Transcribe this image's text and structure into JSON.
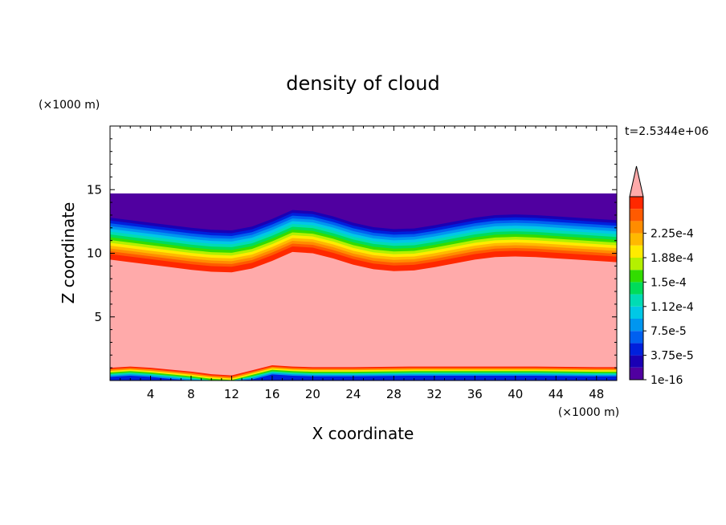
{
  "chart_data": {
    "type": "heatmap",
    "title": "density of cloud",
    "xlabel": "X coordinate",
    "ylabel": "Z coordinate",
    "x_unit": "(×1000 m)",
    "y_unit": "(×1000 m)",
    "time_label": "t=2.5344e+06",
    "xlim": [
      0,
      50
    ],
    "ylim": [
      0,
      20
    ],
    "x_ticks": [
      4,
      8,
      12,
      16,
      20,
      24,
      28,
      32,
      36,
      40,
      44,
      48
    ],
    "y_ticks": [
      5,
      10,
      15
    ],
    "domain_top_z": 14.7,
    "colorbar": {
      "levels": [
        "1e-16",
        "3.75e-5",
        "7.5e-5",
        "1.12e-4",
        "1.5e-4",
        "1.88e-4",
        "2.25e-4"
      ],
      "colors": [
        "#5000a0",
        "#1a00b4",
        "#0020dc",
        "#0060f0",
        "#0096f0",
        "#00c8e6",
        "#00dcb4",
        "#00dc5a",
        "#32dc00",
        "#b4f000",
        "#ffeb00",
        "#ffb900",
        "#ff8c00",
        "#ff5a00",
        "#ff2800"
      ],
      "overflow_color": "#ffaaaa"
    },
    "upper_cloud_base_km": [
      [
        0,
        9.5
      ],
      [
        2,
        9.3
      ],
      [
        4,
        9.1
      ],
      [
        6,
        8.9
      ],
      [
        8,
        8.7
      ],
      [
        10,
        8.55
      ],
      [
        12,
        8.5
      ],
      [
        14,
        8.8
      ],
      [
        16,
        9.4
      ],
      [
        18,
        10.1
      ],
      [
        20,
        10.0
      ],
      [
        22,
        9.6
      ],
      [
        24,
        9.1
      ],
      [
        26,
        8.75
      ],
      [
        28,
        8.6
      ],
      [
        30,
        8.65
      ],
      [
        32,
        8.9
      ],
      [
        34,
        9.2
      ],
      [
        36,
        9.5
      ],
      [
        38,
        9.7
      ],
      [
        40,
        9.75
      ],
      [
        42,
        9.7
      ],
      [
        44,
        9.6
      ],
      [
        46,
        9.5
      ],
      [
        48,
        9.4
      ],
      [
        50,
        9.3
      ]
    ],
    "lower_cloud_top_km": [
      [
        0,
        1.0
      ],
      [
        2,
        1.1
      ],
      [
        4,
        1.0
      ],
      [
        6,
        0.85
      ],
      [
        8,
        0.7
      ],
      [
        10,
        0.5
      ],
      [
        12,
        0.4
      ],
      [
        14,
        0.8
      ],
      [
        16,
        1.2
      ],
      [
        18,
        1.1
      ],
      [
        20,
        1.05
      ],
      [
        24,
        1.05
      ],
      [
        30,
        1.1
      ],
      [
        36,
        1.1
      ],
      [
        42,
        1.1
      ],
      [
        48,
        1.05
      ],
      [
        50,
        1.05
      ]
    ]
  }
}
